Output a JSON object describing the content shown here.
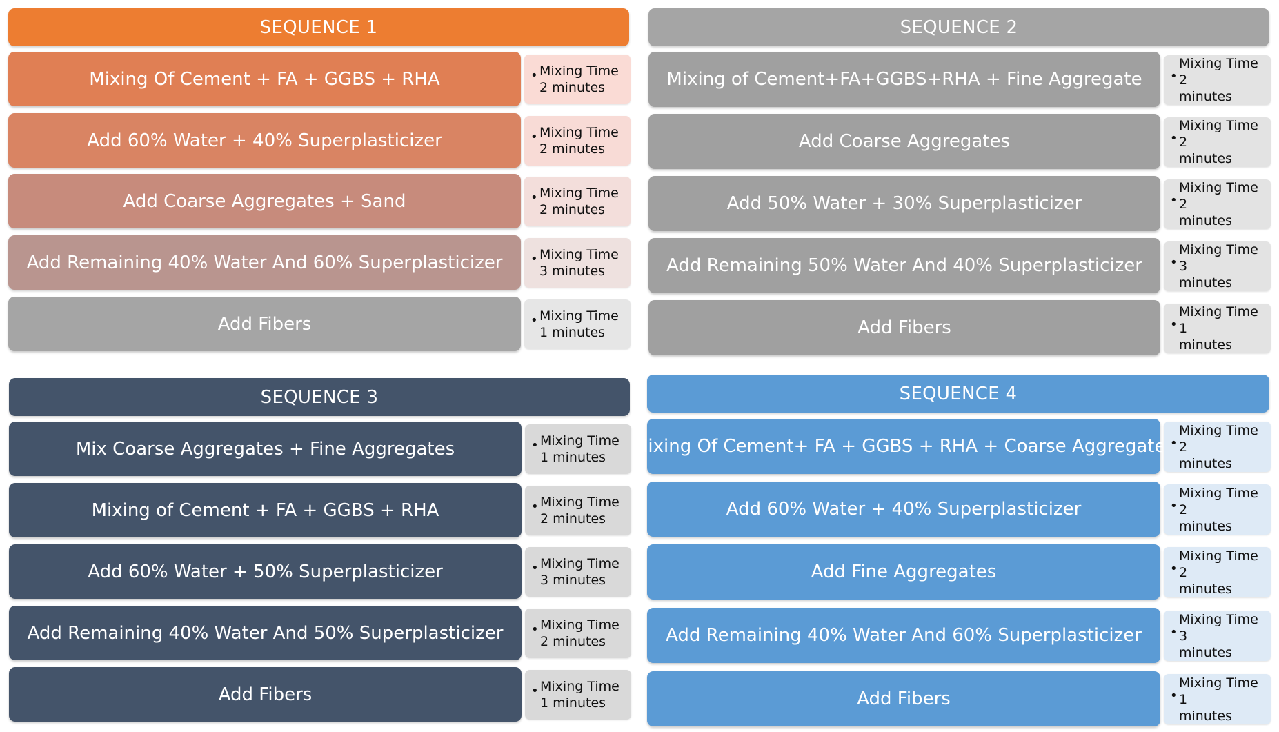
{
  "sequences": [
    {
      "title": "SEQUENCE 1",
      "header_color": "#ED7D31",
      "steps": [
        {
          "label": "Mixing Of  Cement + FA + GGBS + RHA",
          "color": "#E07F54",
          "note_l1": "Mixing Time",
          "note_l2": "2 minutes",
          "note_bg": "#FADBD5"
        },
        {
          "label": "Add 60% Water + 40% Superplasticizer",
          "color": "#D98463",
          "note_l1": "Mixing Time",
          "note_l2": "2 minutes",
          "note_bg": "#F8DBD6"
        },
        {
          "label": "Add Coarse Aggregates + Sand",
          "color": "#C78B7C",
          "note_l1": "Mixing Time",
          "note_l2": "2 minutes",
          "note_bg": "#F3DEDB"
        },
        {
          "label": "Add Remaining 40% Water And 60% Superplasticizer",
          "color": "#B9958F",
          "note_l1": "Mixing Time",
          "note_l2": "3 minutes",
          "note_bg": "#EEE1DF"
        },
        {
          "label": "Add Fibers",
          "color": "#A5A5A5",
          "note_l1": "Mixing Time",
          "note_l2": "1 minutes",
          "note_bg": "#E6E6E6"
        }
      ]
    },
    {
      "title": "SEQUENCE 2",
      "header_color": "#A5A5A5",
      "steps": [
        {
          "label": "Mixing of Cement+FA+GGBS+RHA + Fine Aggregate",
          "color": "#A0A0A0",
          "note_l1": "Mixing Time 2",
          "note_l2": "minutes",
          "note_bg": "#E3E3E3"
        },
        {
          "label": "Add Coarse Aggregates",
          "color": "#A0A0A0",
          "note_l1": "Mixing Time 2",
          "note_l2": "minutes",
          "note_bg": "#E3E3E3"
        },
        {
          "label": "Add 50% Water + 30% Superplasticizer",
          "color": "#A0A0A0",
          "note_l1": "Mixing Time 2",
          "note_l2": "minutes",
          "note_bg": "#E3E3E3"
        },
        {
          "label": "Add Remaining 50% Water And 40% Superplasticizer",
          "color": "#A0A0A0",
          "note_l1": "Mixing Time 3",
          "note_l2": "minutes",
          "note_bg": "#E3E3E3"
        },
        {
          "label": "Add Fibers",
          "color": "#A0A0A0",
          "note_l1": "Mixing Time 1",
          "note_l2": "minutes",
          "note_bg": "#E3E3E3"
        }
      ]
    },
    {
      "title": "SEQUENCE 3",
      "header_color": "#44546A",
      "steps": [
        {
          "label": "Mix Coarse Aggregates + Fine Aggregates",
          "color": "#44546A",
          "note_l1": "Mixing Time",
          "note_l2": "1 minutes",
          "note_bg": "#D9D9D9"
        },
        {
          "label": "Mixing of Cement + FA + GGBS + RHA",
          "color": "#44546A",
          "note_l1": "Mixing Time",
          "note_l2": "2 minutes",
          "note_bg": "#D9D9D9"
        },
        {
          "label": "Add 60% Water + 50% Superplasticizer",
          "color": "#44546A",
          "note_l1": "Mixing Time",
          "note_l2": "3 minutes",
          "note_bg": "#D9D9D9"
        },
        {
          "label": "Add Remaining 40% Water And 50% Superplasticizer",
          "color": "#44546A",
          "note_l1": "Mixing Time",
          "note_l2": "2 minutes",
          "note_bg": "#D9D9D9"
        },
        {
          "label": "Add Fibers",
          "color": "#44546A",
          "note_l1": "Mixing Time",
          "note_l2": "1 minutes",
          "note_bg": "#D9D9D9"
        }
      ]
    },
    {
      "title": "SEQUENCE 4",
      "header_color": "#5B9BD5",
      "steps": [
        {
          "label": "Mixing Of Cement+ FA + GGBS + RHA + Coarse Aggregates",
          "color": "#5B9BD5",
          "note_l1": "Mixing Time 2",
          "note_l2": "minutes",
          "note_bg": "#DEEAF6"
        },
        {
          "label": "Add 60% Water + 40% Superplasticizer",
          "color": "#5B9BD5",
          "note_l1": "Mixing Time 2",
          "note_l2": "minutes",
          "note_bg": "#DEEAF6"
        },
        {
          "label": "Add Fine Aggregates",
          "color": "#5B9BD5",
          "note_l1": "Mixing Time 2",
          "note_l2": "minutes",
          "note_bg": "#DEEAF6"
        },
        {
          "label": "Add Remaining 40% Water And 60% Superplasticizer",
          "color": "#5B9BD5",
          "note_l1": "Mixing Time 3",
          "note_l2": "minutes",
          "note_bg": "#DEEAF6"
        },
        {
          "label": "Add Fibers",
          "color": "#5B9BD5",
          "note_l1": "Mixing Time 1",
          "note_l2": "minutes",
          "note_bg": "#DEEAF6"
        }
      ]
    }
  ],
  "bullet_glyph": "•"
}
